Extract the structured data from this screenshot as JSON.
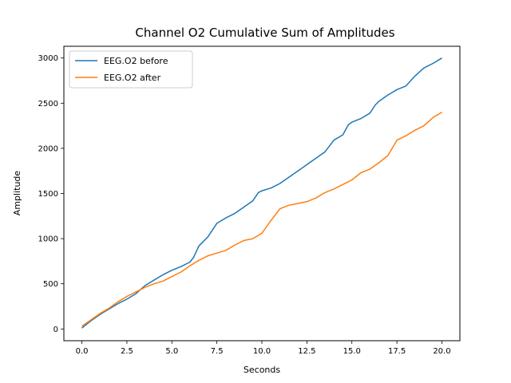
{
  "chart_data": {
    "type": "line",
    "title": "Channel O2 Cumulative Sum of Amplitudes",
    "xlabel": "Seconds",
    "ylabel": "Amplitude",
    "xlim": [
      -1.0,
      21.0
    ],
    "ylim": [
      -130,
      3130
    ],
    "xticks": [
      0.0,
      2.5,
      5.0,
      7.5,
      10.0,
      12.5,
      15.0,
      17.5,
      20.0
    ],
    "xtick_labels": [
      "0.0",
      "2.5",
      "5.0",
      "7.5",
      "10.0",
      "12.5",
      "15.0",
      "17.5",
      "20.0"
    ],
    "yticks": [
      0,
      500,
      1000,
      1500,
      2000,
      2500,
      3000
    ],
    "ytick_labels": [
      "0",
      "500",
      "1000",
      "1500",
      "2000",
      "2500",
      "3000"
    ],
    "legend_position": "upper-left",
    "series": [
      {
        "name": "EEG.O2 before",
        "color": "#1f77b4",
        "points": [
          [
            0.0,
            10
          ],
          [
            0.5,
            90
          ],
          [
            1.0,
            160
          ],
          [
            1.5,
            220
          ],
          [
            2.0,
            280
          ],
          [
            2.5,
            330
          ],
          [
            3.0,
            390
          ],
          [
            3.5,
            480
          ],
          [
            4.0,
            540
          ],
          [
            4.5,
            600
          ],
          [
            5.0,
            650
          ],
          [
            5.5,
            690
          ],
          [
            6.0,
            740
          ],
          [
            6.2,
            790
          ],
          [
            6.5,
            920
          ],
          [
            7.0,
            1020
          ],
          [
            7.5,
            1170
          ],
          [
            8.0,
            1230
          ],
          [
            8.5,
            1280
          ],
          [
            9.0,
            1350
          ],
          [
            9.5,
            1420
          ],
          [
            9.8,
            1510
          ],
          [
            10.0,
            1530
          ],
          [
            10.5,
            1560
          ],
          [
            11.0,
            1610
          ],
          [
            11.5,
            1680
          ],
          [
            12.0,
            1750
          ],
          [
            12.5,
            1820
          ],
          [
            13.0,
            1890
          ],
          [
            13.5,
            1960
          ],
          [
            14.0,
            2090
          ],
          [
            14.5,
            2150
          ],
          [
            14.8,
            2260
          ],
          [
            15.0,
            2290
          ],
          [
            15.5,
            2330
          ],
          [
            16.0,
            2390
          ],
          [
            16.3,
            2480
          ],
          [
            16.5,
            2520
          ],
          [
            17.0,
            2590
          ],
          [
            17.5,
            2650
          ],
          [
            18.0,
            2690
          ],
          [
            18.5,
            2800
          ],
          [
            19.0,
            2890
          ],
          [
            19.5,
            2940
          ],
          [
            20.0,
            3000
          ]
        ]
      },
      {
        "name": "EEG.O2 after",
        "color": "#ff7f0e",
        "points": [
          [
            0.0,
            30
          ],
          [
            0.5,
            100
          ],
          [
            1.0,
            170
          ],
          [
            1.5,
            230
          ],
          [
            2.0,
            300
          ],
          [
            2.5,
            360
          ],
          [
            3.0,
            410
          ],
          [
            3.5,
            460
          ],
          [
            4.0,
            500
          ],
          [
            4.5,
            530
          ],
          [
            5.0,
            580
          ],
          [
            5.5,
            630
          ],
          [
            6.0,
            700
          ],
          [
            6.5,
            760
          ],
          [
            7.0,
            810
          ],
          [
            7.5,
            840
          ],
          [
            8.0,
            870
          ],
          [
            8.5,
            930
          ],
          [
            9.0,
            980
          ],
          [
            9.5,
            1000
          ],
          [
            10.0,
            1060
          ],
          [
            10.5,
            1200
          ],
          [
            11.0,
            1330
          ],
          [
            11.5,
            1370
          ],
          [
            12.0,
            1390
          ],
          [
            12.5,
            1410
          ],
          [
            13.0,
            1450
          ],
          [
            13.5,
            1510
          ],
          [
            14.0,
            1550
          ],
          [
            14.5,
            1600
          ],
          [
            15.0,
            1650
          ],
          [
            15.5,
            1730
          ],
          [
            16.0,
            1770
          ],
          [
            16.5,
            1840
          ],
          [
            17.0,
            1920
          ],
          [
            17.5,
            2090
          ],
          [
            18.0,
            2140
          ],
          [
            18.5,
            2200
          ],
          [
            19.0,
            2250
          ],
          [
            19.5,
            2340
          ],
          [
            20.0,
            2400
          ]
        ]
      }
    ]
  }
}
